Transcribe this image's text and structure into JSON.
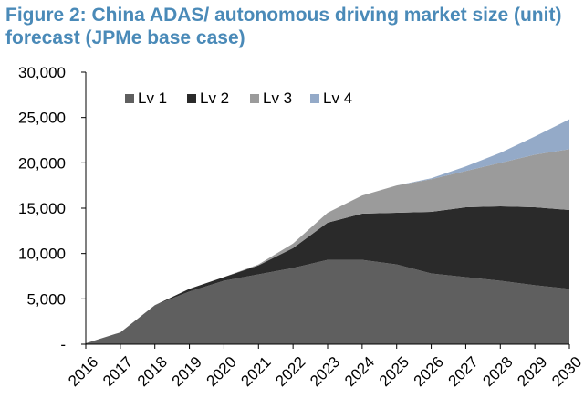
{
  "title_line1": "Figure 2: China ADAS/ autonomous driving market size (unit)",
  "title_line2": "forecast (JPMe base case)",
  "colors": {
    "title": "#4a8ab8",
    "Lv 1": "#5f5f5f",
    "Lv 2": "#2a2a2a",
    "Lv 3": "#9b9b9b",
    "Lv 4": "#94aac8"
  },
  "chart_data": {
    "type": "area",
    "stacked": true,
    "title": "Figure 2: China ADAS/ autonomous driving market size (unit) forecast (JPMe base case)",
    "xlabel": "",
    "ylabel": "",
    "ylim": [
      0,
      30000
    ],
    "yticks": [
      0,
      5000,
      10000,
      15000,
      20000,
      25000,
      30000
    ],
    "ytick_labels": [
      "-",
      "5,000",
      "10,000",
      "15,000",
      "20,000",
      "25,000",
      "30,000"
    ],
    "categories": [
      "2016",
      "2017",
      "2018",
      "2019",
      "2020",
      "2021",
      "2022",
      "2023",
      "2024",
      "2025",
      "2026",
      "2027",
      "2028",
      "2029",
      "2030"
    ],
    "legend_position": "top-left",
    "series": [
      {
        "name": "Lv 1",
        "values": [
          100,
          1300,
          4300,
          5800,
          7000,
          7700,
          8400,
          9300,
          9300,
          8800,
          7800,
          7400,
          7000,
          6500,
          6100
        ]
      },
      {
        "name": "Lv 2",
        "values": [
          0,
          0,
          0,
          300,
          400,
          1000,
          2200,
          4100,
          5100,
          5700,
          6800,
          7700,
          8200,
          8600,
          8700
        ]
      },
      {
        "name": "Lv 3",
        "values": [
          0,
          0,
          0,
          0,
          0,
          100,
          500,
          1100,
          2000,
          3000,
          3600,
          4000,
          4800,
          5800,
          6700
        ]
      },
      {
        "name": "Lv 4",
        "values": [
          0,
          0,
          0,
          0,
          0,
          0,
          0,
          0,
          0,
          0,
          100,
          500,
          1100,
          2000,
          3300
        ]
      }
    ]
  }
}
